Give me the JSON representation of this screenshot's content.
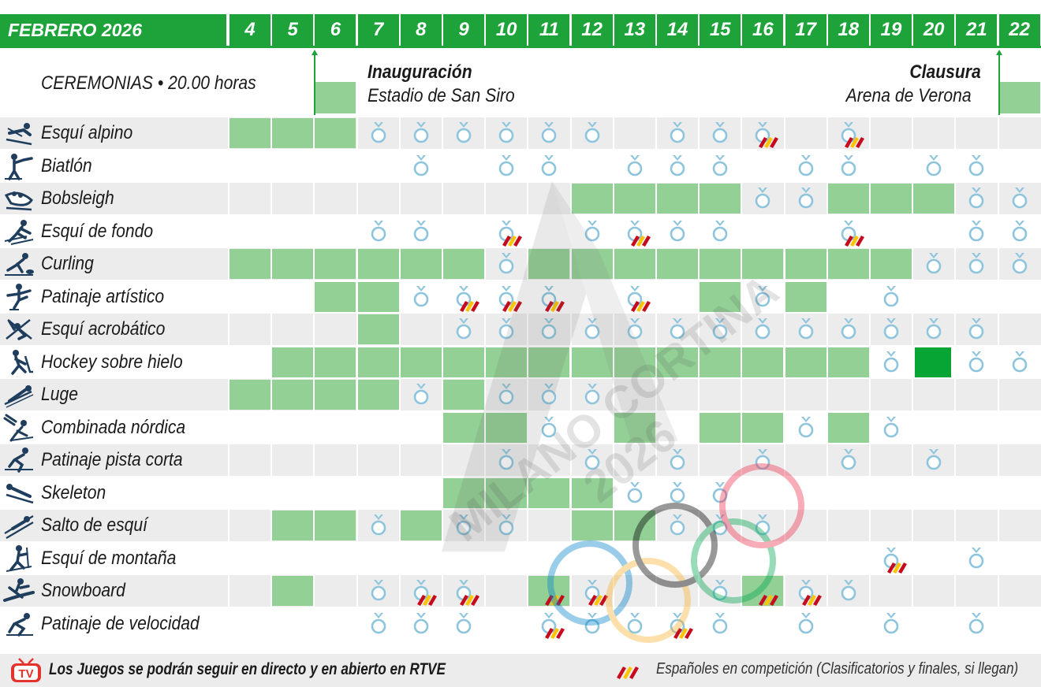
{
  "header": {
    "month": "FEBRERO 2026",
    "days": [
      "4",
      "5",
      "6",
      "7",
      "8",
      "9",
      "10",
      "11",
      "12",
      "13",
      "14",
      "15",
      "16",
      "17",
      "18",
      "19",
      "20",
      "21",
      "22"
    ]
  },
  "ceremonies": {
    "label": "CEREMONIAS • 20.00 horas",
    "opening_title": "Inauguración",
    "opening_venue": "Estadio de San Siro",
    "closing_title": "Clausura",
    "closing_venue": "Arena de Verona",
    "opening_day": "6",
    "closing_day": "22"
  },
  "watermark": {
    "logo_text": "MILANO CORTINA",
    "logo_year": "2026",
    "rings_colors": [
      "#0081c8",
      "#fcb131",
      "#000000",
      "#00a651",
      "#ee334e"
    ]
  },
  "colors": {
    "header_green": "#1da33a",
    "competition_day": "#93d096",
    "final_day": "#07a533",
    "medal_blue": "#8ec5dc",
    "row_shade": "#ececec"
  },
  "sports": [
    {
      "name": "Esquí alpino",
      "icon": "alpine-skiing-icon",
      "blocks": [
        "4",
        "5",
        "6"
      ],
      "dark": [],
      "medals": [
        "7",
        "8",
        "9",
        "10",
        "11",
        "12",
        "14",
        "15",
        "16",
        "18"
      ],
      "flags": [
        "16",
        "18"
      ]
    },
    {
      "name": "Biatlón",
      "icon": "biathlon-icon",
      "blocks": [],
      "dark": [],
      "medals": [
        "8",
        "10",
        "11",
        "13",
        "14",
        "15",
        "17",
        "18",
        "20",
        "21"
      ],
      "flags": []
    },
    {
      "name": "Bobsleigh",
      "icon": "bobsleigh-icon",
      "blocks": [
        "12",
        "13",
        "14",
        "15",
        "18",
        "19",
        "20"
      ],
      "dark": [],
      "medals": [
        "16",
        "17",
        "21",
        "22"
      ],
      "flags": []
    },
    {
      "name": "Esquí de fondo",
      "icon": "cross-country-skiing-icon",
      "blocks": [],
      "dark": [],
      "medals": [
        "7",
        "8",
        "10",
        "12",
        "13",
        "14",
        "15",
        "18",
        "21",
        "22"
      ],
      "flags": [
        "10",
        "13",
        "18"
      ]
    },
    {
      "name": "Curling",
      "icon": "curling-icon",
      "blocks": [
        "4",
        "5",
        "6",
        "7",
        "8",
        "9",
        "11",
        "12",
        "13",
        "14",
        "15",
        "16",
        "17",
        "18",
        "19"
      ],
      "dark": [],
      "medals": [
        "10",
        "20",
        "21",
        "22"
      ],
      "flags": []
    },
    {
      "name": "Patinaje artístico",
      "icon": "figure-skating-icon",
      "blocks": [
        "6",
        "7",
        "15",
        "17"
      ],
      "dark": [],
      "medals": [
        "8",
        "9",
        "10",
        "11",
        "13",
        "16",
        "19"
      ],
      "flags": [
        "9",
        "10",
        "11",
        "13"
      ]
    },
    {
      "name": "Esquí acrobático",
      "icon": "freestyle-skiing-icon",
      "blocks": [
        "7"
      ],
      "dark": [],
      "medals": [
        "9",
        "10",
        "11",
        "12",
        "13",
        "14",
        "15",
        "16",
        "17",
        "18",
        "19",
        "20",
        "21"
      ],
      "flags": []
    },
    {
      "name": "Hockey sobre hielo",
      "icon": "ice-hockey-icon",
      "blocks": [
        "5",
        "6",
        "7",
        "8",
        "9",
        "10",
        "11",
        "12",
        "13",
        "14",
        "15",
        "16",
        "17",
        "18"
      ],
      "dark": [
        "20"
      ],
      "medals": [
        "19",
        "21",
        "22"
      ],
      "flags": []
    },
    {
      "name": "Luge",
      "icon": "luge-icon",
      "blocks": [
        "4",
        "5",
        "6",
        "7",
        "9"
      ],
      "dark": [],
      "medals": [
        "8",
        "10",
        "11",
        "12"
      ],
      "flags": []
    },
    {
      "name": "Combinada nórdica",
      "icon": "nordic-combined-icon",
      "blocks": [
        "9",
        "10",
        "13",
        "15",
        "16",
        "18"
      ],
      "dark": [],
      "medals": [
        "11",
        "17",
        "19"
      ],
      "flags": []
    },
    {
      "name": "Patinaje pista corta",
      "icon": "short-track-icon",
      "blocks": [],
      "dark": [],
      "medals": [
        "10",
        "12",
        "14",
        "16",
        "18",
        "20"
      ],
      "flags": []
    },
    {
      "name": "Skeleton",
      "icon": "skeleton-icon",
      "blocks": [
        "9",
        "10",
        "11",
        "12"
      ],
      "dark": [],
      "medals": [
        "13",
        "14",
        "15"
      ],
      "flags": []
    },
    {
      "name": "Salto de esquí",
      "icon": "ski-jumping-icon",
      "blocks": [
        "5",
        "6",
        "8",
        "12",
        "13"
      ],
      "dark": [],
      "medals": [
        "7",
        "9",
        "10",
        "14",
        "15",
        "16"
      ],
      "flags": []
    },
    {
      "name": "Esquí de montaña",
      "icon": "ski-mountaineering-icon",
      "blocks": [],
      "dark": [],
      "medals": [
        "19",
        "21"
      ],
      "flags": [
        "19"
      ]
    },
    {
      "name": "Snowboard",
      "icon": "snowboard-icon",
      "blocks": [
        "5",
        "11",
        "16"
      ],
      "dark": [],
      "medals": [
        "7",
        "8",
        "9",
        "12",
        "15",
        "17",
        "18"
      ],
      "flags": [
        "8",
        "9",
        "11",
        "12",
        "16",
        "17"
      ]
    },
    {
      "name": "Patinaje de velocidad",
      "icon": "speed-skating-icon",
      "blocks": [],
      "dark": [],
      "medals": [
        "7",
        "8",
        "9",
        "11",
        "12",
        "13",
        "14",
        "15",
        "17",
        "19",
        "21"
      ],
      "flags": [
        "11",
        "14"
      ]
    }
  ],
  "footer": {
    "tv_icon": "tv-icon",
    "broadcast_text": "Los Juegos se podrán seguir en directo y en abierto en RTVE",
    "legend_text": "Españoles en competición (Clasificatorios y finales, si llegan)"
  }
}
